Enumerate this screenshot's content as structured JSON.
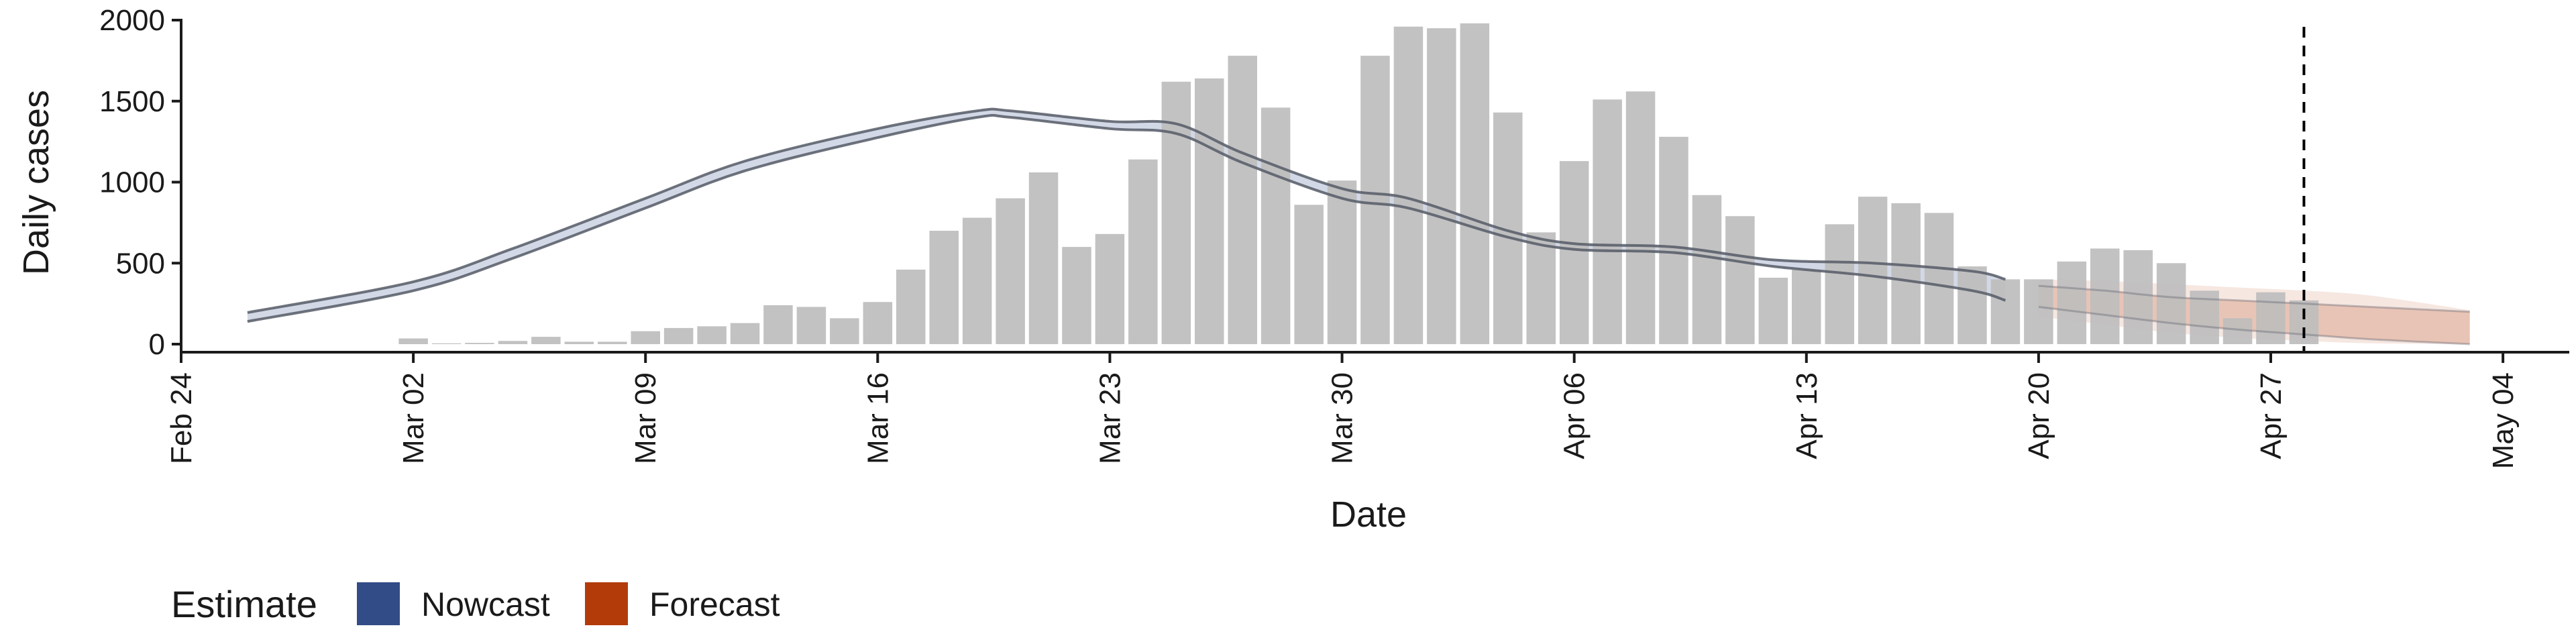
{
  "chart_data": {
    "type": "bar",
    "xlabel": "Date",
    "ylabel": "Daily cases",
    "ylim": [
      0,
      2000
    ],
    "y_ticks": [
      0,
      500,
      1000,
      1500,
      2000
    ],
    "y_tick_labels": [
      "0",
      "500",
      "1000",
      "1500",
      "2000"
    ],
    "x_ticks": [
      "2020-02-24",
      "2020-03-02",
      "2020-03-09",
      "2020-03-16",
      "2020-03-23",
      "2020-03-30",
      "2020-04-06",
      "2020-04-13",
      "2020-04-20",
      "2020-04-27",
      "2020-05-04"
    ],
    "x_tick_labels": [
      "Feb 24",
      "Mar 02",
      "Mar 09",
      "Mar 16",
      "Mar 23",
      "Mar 30",
      "Apr 06",
      "Apr 13",
      "Apr 20",
      "Apr 27",
      "May 04"
    ],
    "xlim": [
      "2020-02-24",
      "2020-05-06"
    ],
    "grid": false,
    "vline_date": "2020-04-28",
    "colors": {
      "bars": "#bdbdbd",
      "nowcast": "#324c87",
      "forecast": "#b33b0a",
      "estimate_line": "#555a66",
      "vline": "#000000"
    },
    "legend": {
      "position": "bottom-left",
      "title": "Estimate",
      "items": [
        {
          "label": "Nowcast",
          "color": "#324c87"
        },
        {
          "label": "Forecast",
          "color": "#b33b0a"
        }
      ]
    },
    "bars": {
      "name": "Daily cases",
      "dates": [
        "2020-03-02",
        "2020-03-03",
        "2020-03-04",
        "2020-03-05",
        "2020-03-06",
        "2020-03-07",
        "2020-03-08",
        "2020-03-09",
        "2020-03-10",
        "2020-03-11",
        "2020-03-12",
        "2020-03-13",
        "2020-03-14",
        "2020-03-15",
        "2020-03-16",
        "2020-03-17",
        "2020-03-18",
        "2020-03-19",
        "2020-03-20",
        "2020-03-21",
        "2020-03-22",
        "2020-03-23",
        "2020-03-24",
        "2020-03-25",
        "2020-03-26",
        "2020-03-27",
        "2020-03-28",
        "2020-03-29",
        "2020-03-30",
        "2020-03-31",
        "2020-04-01",
        "2020-04-02",
        "2020-04-03",
        "2020-04-04",
        "2020-04-05",
        "2020-04-06",
        "2020-04-07",
        "2020-04-08",
        "2020-04-09",
        "2020-04-10",
        "2020-04-11",
        "2020-04-12",
        "2020-04-13",
        "2020-04-14",
        "2020-04-15",
        "2020-04-16",
        "2020-04-17",
        "2020-04-18",
        "2020-04-19",
        "2020-04-20",
        "2020-04-21",
        "2020-04-22",
        "2020-04-23",
        "2020-04-24",
        "2020-04-25",
        "2020-04-26",
        "2020-04-27",
        "2020-04-28"
      ],
      "values": [
        35,
        5,
        8,
        20,
        45,
        15,
        15,
        80,
        100,
        110,
        130,
        240,
        230,
        160,
        260,
        460,
        700,
        780,
        900,
        1060,
        600,
        680,
        1140,
        1620,
        1640,
        1780,
        1460,
        860,
        1010,
        1780,
        1960,
        1950,
        1980,
        1430,
        690,
        1130,
        1510,
        1560,
        1280,
        920,
        790,
        410,
        460,
        740,
        910,
        870,
        810,
        480,
        400,
        400,
        510,
        590,
        580,
        500,
        330,
        160,
        320,
        270
      ]
    },
    "nowcast_line": {
      "name": "Nowcast",
      "dates": [
        "2020-02-26",
        "2020-03-02",
        "2020-03-05",
        "2020-03-09",
        "2020-03-12",
        "2020-03-16",
        "2020-03-19",
        "2020-03-20",
        "2020-03-23",
        "2020-03-25",
        "2020-03-27",
        "2020-03-30",
        "2020-04-01",
        "2020-04-04",
        "2020-04-06",
        "2020-04-09",
        "2020-04-12",
        "2020-04-15",
        "2020-04-18",
        "2020-04-19"
      ],
      "values": [
        170,
        360,
        560,
        870,
        1100,
        1300,
        1420,
        1420,
        1350,
        1330,
        1150,
        930,
        870,
        680,
        600,
        580,
        500,
        460,
        390,
        330
      ],
      "lower": [
        140,
        330,
        530,
        840,
        1070,
        1275,
        1400,
        1400,
        1330,
        1300,
        1120,
        900,
        840,
        660,
        585,
        565,
        480,
        420,
        330,
        270
      ],
      "upper": [
        195,
        385,
        590,
        900,
        1130,
        1330,
        1440,
        1440,
        1375,
        1360,
        1180,
        960,
        900,
        700,
        620,
        600,
        520,
        500,
        450,
        400
      ]
    },
    "forecast_line": {
      "name": "Forecast",
      "dates": [
        "2020-04-20",
        "2020-04-22",
        "2020-04-24",
        "2020-04-26",
        "2020-04-28",
        "2020-04-30",
        "2020-05-03"
      ],
      "values": [
        300,
        250,
        200,
        160,
        140,
        120,
        60
      ],
      "lower": [
        230,
        180,
        130,
        90,
        60,
        30,
        0
      ],
      "upper": [
        360,
        330,
        290,
        270,
        250,
        230,
        200
      ],
      "lower_outer": [
        170,
        120,
        70,
        40,
        20,
        5,
        0
      ],
      "upper_outer": [
        400,
        390,
        370,
        350,
        330,
        300,
        210
      ]
    }
  }
}
